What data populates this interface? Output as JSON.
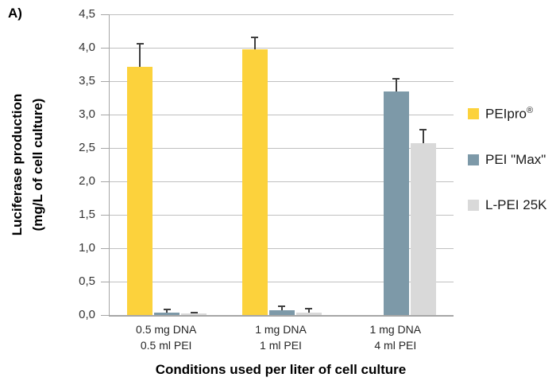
{
  "panel_label": "A)",
  "y_axis": {
    "title_line1": "Luciferase production",
    "title_line2": "(mg/L of cell culture)",
    "tick_labels": [
      "4,5",
      "4,0",
      "3,5",
      "3,0",
      "2,5",
      "2,0",
      "1,5",
      "1,0",
      "0,5",
      "0,0"
    ]
  },
  "x_axis": {
    "title": "Conditions used per liter of cell culture",
    "categories": [
      {
        "line1": "0.5 mg DNA",
        "line2": "0.5 ml PEI"
      },
      {
        "line1": "1 mg DNA",
        "line2": "1 ml PEI"
      },
      {
        "line1": "1 mg DNA",
        "line2": "4 ml PEI"
      }
    ]
  },
  "legend": {
    "items": [
      {
        "label": "PEIpro",
        "sup": "®",
        "color": "#FCD23C"
      },
      {
        "label": "PEI \"Max\"",
        "sup": "",
        "color": "#7D99A8"
      },
      {
        "label": "L-PEI 25K",
        "sup": "",
        "color": "#D9D9D9"
      }
    ]
  },
  "chart_data": {
    "type": "bar",
    "title": "",
    "categories": [
      "0.5 mg DNA / 0.5 ml PEI",
      "1 mg DNA / 1 ml PEI",
      "1 mg DNA / 4 ml PEI"
    ],
    "series": [
      {
        "name": "PEIpro®",
        "color": "#FCD23C",
        "values": [
          3.72,
          3.98,
          null
        ],
        "error_up": [
          0.34,
          0.18,
          null
        ]
      },
      {
        "name": "PEI \"Max\"",
        "color": "#7D99A8",
        "values": [
          0.04,
          0.07,
          3.35
        ],
        "error_up": [
          0.04,
          0.06,
          0.19
        ]
      },
      {
        "name": "L-PEI 25K",
        "color": "#D9D9D9",
        "values": [
          0.02,
          0.04,
          2.57
        ],
        "error_up": [
          0.02,
          0.06,
          0.2
        ]
      }
    ],
    "ylabel": "Luciferase production (mg/L of cell culture)",
    "xlabel": "Conditions used per liter of cell culture",
    "ylim": [
      0,
      4.5
    ],
    "ytick_step": 0.5,
    "grid": true,
    "legend_position": "right",
    "error_bars": true,
    "decimal_separator": ",",
    "bar_color_gridline": "#C0C0C0",
    "axis_color": "#A6A6A6",
    "error_color": "#3F3F3F"
  }
}
